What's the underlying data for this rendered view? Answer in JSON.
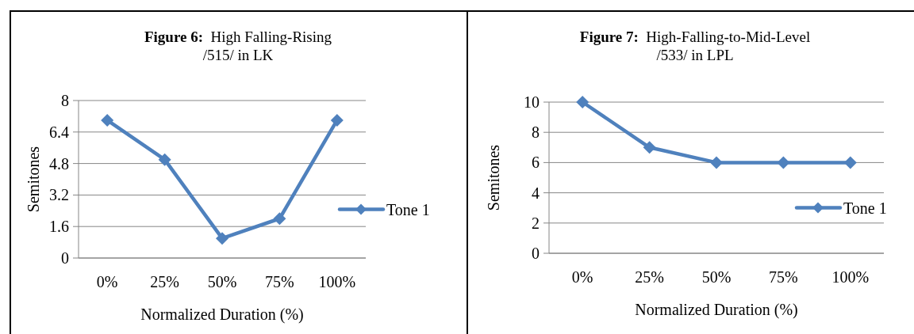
{
  "chart_data": [
    {
      "type": "line",
      "title": "Figure 6:  High Falling-Rising\n/515/ in LK",
      "xlabel": "Normalized Duration (%)",
      "ylabel": "Semitones",
      "categories": [
        "0%",
        "25%",
        "50%",
        "75%",
        "100%"
      ],
      "series": [
        {
          "name": "Tone 1",
          "color": "#4f81bd",
          "values": [
            7,
            5,
            1,
            2,
            7
          ]
        }
      ],
      "ylim": [
        0,
        8
      ],
      "yticks": [
        0,
        1.6,
        3.2,
        4.8,
        6.4,
        8
      ],
      "grid": "y",
      "legend": "right",
      "marker": "diamond"
    },
    {
      "type": "line",
      "title": "Figure 7:  High-Falling-to-Mid-Level\n/533/ in LPL",
      "xlabel": "Normalized Duration (%)",
      "ylabel": "Semitones",
      "categories": [
        "0%",
        "25%",
        "50%",
        "75%",
        "100%"
      ],
      "series": [
        {
          "name": "Tone 1",
          "color": "#4f81bd",
          "values": [
            10,
            7,
            6,
            6,
            6
          ]
        }
      ],
      "ylim": [
        0,
        10
      ],
      "yticks": [
        0,
        2,
        4,
        6,
        8,
        10
      ],
      "grid": "y",
      "legend": "right",
      "marker": "diamond"
    }
  ]
}
